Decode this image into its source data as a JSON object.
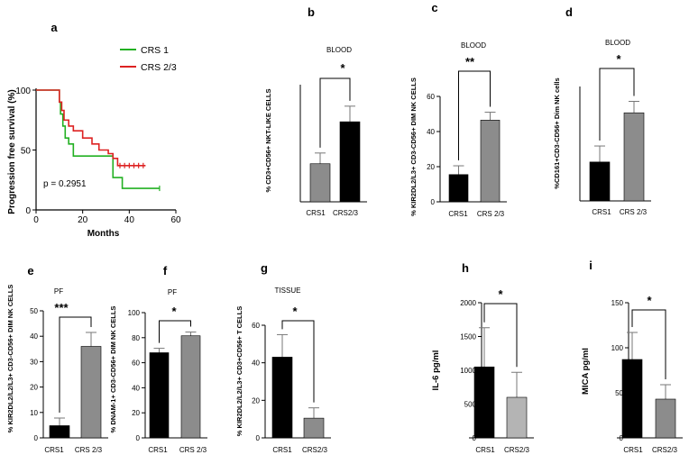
{
  "colors": {
    "black": "#000000",
    "gray": "#8c8c8c",
    "light_gray": "#b4b4b4",
    "error_gray": "#777777",
    "crs1_line": "#22b022",
    "crs23_line": "#dd2222"
  },
  "chart_data": [
    {
      "panel": "a",
      "type": "line",
      "ylabel": "Progression free survival (%)",
      "xlabel": "Months",
      "xlim": [
        0,
        60
      ],
      "ylim": [
        0,
        100
      ],
      "x_ticks": [
        "0",
        "20",
        "40",
        "60"
      ],
      "y_ticks": [
        "0",
        "50",
        "100"
      ],
      "annotation": "p = 0.2951",
      "series": [
        {
          "name": "CRS 1",
          "color": "#22b022",
          "x": [
            0,
            10,
            10.5,
            11.5,
            12.5,
            14,
            16,
            27,
            33,
            37,
            53
          ],
          "y": [
            100,
            90,
            80,
            70,
            60,
            55,
            45,
            45,
            27,
            18,
            18
          ],
          "censor_x": [
            53
          ]
        },
        {
          "name": "CRS 2/3",
          "color": "#dd2222",
          "x": [
            0,
            10,
            11,
            12,
            14,
            16,
            20,
            24,
            27,
            31,
            33,
            35,
            47
          ],
          "y": [
            100,
            90,
            83,
            75,
            70,
            66,
            60,
            55,
            50,
            47,
            43,
            37,
            37
          ],
          "censor_x": [
            36,
            38,
            40,
            42,
            44,
            46
          ]
        }
      ]
    },
    {
      "panel": "b",
      "type": "bar",
      "title": "BLOOD",
      "ylabel": "% CD3+CD56+ NKT-LIKE CELLS",
      "categories": [
        "CRS1",
        "CRS2/3"
      ],
      "values": [
        3.9,
        8.2
      ],
      "errors": [
        1.1,
        1.6
      ],
      "bar_colors": [
        "gray",
        "black"
      ],
      "ylim": [
        0,
        12
      ],
      "y_ticks": [],
      "significance": "*"
    },
    {
      "panel": "c",
      "type": "bar",
      "title": "BLOOD",
      "ylabel": "% KIR2DL2/L3+ CD3-CD56+ DIM NK CELLS",
      "categories": [
        "CRS1",
        "CRS 2/3"
      ],
      "values": [
        15.5,
        46.5
      ],
      "errors": [
        5,
        4.5
      ],
      "bar_colors": [
        "black",
        "gray"
      ],
      "ylim": [
        0,
        60
      ],
      "y_ticks": [
        "0",
        "20",
        "40",
        "60"
      ],
      "significance": "**"
    },
    {
      "panel": "d",
      "type": "bar",
      "title": "BLOOD",
      "ylabel": "%CD161+CD3-CD56+ Dim NK cells",
      "categories": [
        "CRS1",
        "CRS 2/3"
      ],
      "values": [
        34,
        77
      ],
      "errors": [
        14,
        10
      ],
      "bar_colors": [
        "black",
        "gray"
      ],
      "ylim": [
        0,
        100
      ],
      "y_ticks": [],
      "significance": "*"
    },
    {
      "panel": "e",
      "type": "bar",
      "title": "PF",
      "ylabel": "% KIR2DL2/L2/L3+ CD3-CD56+ DIM NK CELLS",
      "categories": [
        "CRS1",
        "CRS 2/3"
      ],
      "values": [
        4.8,
        36
      ],
      "errors": [
        3,
        5.5
      ],
      "bar_colors": [
        "black",
        "gray"
      ],
      "ylim": [
        0,
        50
      ],
      "y_ticks": [
        "0",
        "10",
        "20",
        "30",
        "40",
        "50"
      ],
      "significance": "***"
    },
    {
      "panel": "f",
      "type": "bar",
      "title": "PF",
      "ylabel": "% DNAM-1+ CD3-CD56+ DIM NK CELLS",
      "categories": [
        "CRS1",
        "CRS 2/3"
      ],
      "values": [
        68,
        81.5
      ],
      "errors": [
        3.5,
        3
      ],
      "bar_colors": [
        "black",
        "gray"
      ],
      "ylim": [
        0,
        100
      ],
      "y_ticks": [
        "0",
        "20",
        "40",
        "60",
        "80",
        "100"
      ],
      "significance": "*"
    },
    {
      "panel": "g",
      "type": "bar",
      "title": "TISSUE",
      "ylabel": "% KIR2DL2/L2/L3+ CD3+CD56+ T CELLS",
      "categories": [
        "CRS1",
        "CRS2/3"
      ],
      "values": [
        43,
        10.5
      ],
      "errors": [
        12,
        5.5
      ],
      "bar_colors": [
        "black",
        "gray"
      ],
      "ylim": [
        0,
        60
      ],
      "y_ticks": [
        "0",
        "20",
        "40",
        "60"
      ],
      "significance": "*"
    },
    {
      "panel": "h",
      "type": "bar",
      "title": "",
      "ylabel": "IL-6 pg/ml",
      "categories": [
        "CRS1",
        "CRS2/3"
      ],
      "values": [
        1050,
        600
      ],
      "errors": [
        580,
        370
      ],
      "bar_colors": [
        "black",
        "light_gray"
      ],
      "ylim": [
        0,
        2000
      ],
      "y_ticks": [
        "0",
        "500",
        "1000",
        "1500",
        "2000"
      ],
      "significance": "*"
    },
    {
      "panel": "i",
      "type": "bar",
      "title": "",
      "ylabel": "MICA pg/ml",
      "categories": [
        "CRS1",
        "CRS2/3"
      ],
      "values": [
        87,
        43
      ],
      "errors": [
        30,
        16
      ],
      "bar_colors": [
        "black",
        "gray"
      ],
      "ylim": [
        0,
        150
      ],
      "y_ticks": [
        "0",
        "50",
        "100",
        "150"
      ],
      "significance": "*"
    }
  ]
}
